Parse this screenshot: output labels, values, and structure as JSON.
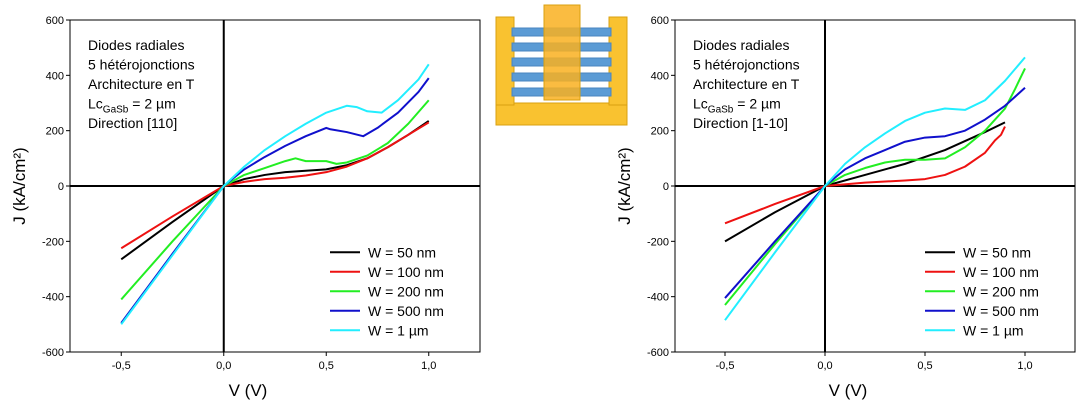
{
  "chart_data": [
    {
      "type": "line",
      "xlabel": "V (V)",
      "ylabel": "J (kA/cm²)",
      "annotation": [
        "Diodes radiales",
        "5 hétérojonctions",
        "Architecture en T",
        {
          "text": "Lc",
          "subscript": "GaSb",
          "suffix": " = 2 µm"
        },
        "Direction [110]"
      ],
      "xlim": [
        -0.75,
        1.25
      ],
      "ylim": [
        -600,
        600
      ],
      "xticks": [
        {
          "value": -0.5,
          "label": "-0,5"
        },
        {
          "value": 0,
          "label": "0,0"
        },
        {
          "value": 0.5,
          "label": "0,5"
        },
        {
          "value": 1,
          "label": "1,0"
        }
      ],
      "yticks": [
        -600,
        -400,
        -200,
        0,
        200,
        400,
        600
      ],
      "legend": "lower right",
      "series": [
        {
          "name": "W = 50 nm",
          "color": "#000000",
          "x": [
            -0.5,
            -0.25,
            0,
            0.1,
            0.2,
            0.3,
            0.5,
            0.6,
            0.7,
            0.8,
            0.9,
            1.0
          ],
          "values": [
            -265,
            -130,
            0,
            25,
            40,
            50,
            60,
            75,
            100,
            140,
            185,
            235
          ]
        },
        {
          "name": "W = 100 nm",
          "color": "#ee1111",
          "x": [
            -0.5,
            -0.25,
            0,
            0.1,
            0.2,
            0.3,
            0.4,
            0.5,
            0.6,
            0.7,
            0.8,
            0.9,
            1.0
          ],
          "values": [
            -225,
            -110,
            0,
            15,
            25,
            30,
            38,
            50,
            70,
            100,
            140,
            185,
            230
          ]
        },
        {
          "name": "W = 200 nm",
          "color": "#22ee22",
          "x": [
            -0.5,
            -0.25,
            0,
            0.1,
            0.2,
            0.3,
            0.35,
            0.4,
            0.5,
            0.55,
            0.6,
            0.7,
            0.8,
            0.9,
            1.0
          ],
          "values": [
            -410,
            -200,
            0,
            40,
            65,
            90,
            100,
            90,
            90,
            80,
            85,
            110,
            155,
            225,
            310
          ]
        },
        {
          "name": "W = 500 nm",
          "color": "#1010cc",
          "x": [
            -0.5,
            -0.25,
            0,
            0.1,
            0.2,
            0.3,
            0.4,
            0.5,
            0.52,
            0.6,
            0.68,
            0.75,
            0.85,
            0.95,
            1.0
          ],
          "values": [
            -495,
            -245,
            0,
            60,
            105,
            145,
            180,
            210,
            205,
            195,
            180,
            210,
            265,
            340,
            390
          ]
        },
        {
          "name": "W = 1 µm",
          "color": "#22eeff",
          "x": [
            -0.5,
            -0.25,
            0,
            0.1,
            0.2,
            0.3,
            0.4,
            0.5,
            0.6,
            0.65,
            0.7,
            0.77,
            0.85,
            0.95,
            1.0
          ],
          "values": [
            -500,
            -250,
            0,
            70,
            130,
            180,
            225,
            265,
            290,
            285,
            270,
            265,
            310,
            385,
            440
          ]
        }
      ]
    },
    {
      "type": "line",
      "xlabel": "V (V)",
      "ylabel": "J (kA/cm²)",
      "annotation": [
        "Diodes radiales",
        "5 hétérojonctions",
        "Architecture en T",
        {
          "text": "Lc",
          "subscript": "GaSb",
          "suffix": " = 2 µm"
        },
        "Direction [1-10]"
      ],
      "xlim": [
        -0.75,
        1.25
      ],
      "ylim": [
        -600,
        600
      ],
      "xticks": [
        {
          "value": -0.5,
          "label": "-0,5"
        },
        {
          "value": 0,
          "label": "0,0"
        },
        {
          "value": 0.5,
          "label": "0,5"
        },
        {
          "value": 1,
          "label": "1,0"
        }
      ],
      "yticks": [
        -600,
        -400,
        -200,
        0,
        200,
        400,
        600
      ],
      "legend": "lower right",
      "series": [
        {
          "name": "W = 50 nm",
          "color": "#000000",
          "x": [
            -0.5,
            -0.25,
            0,
            0.2,
            0.4,
            0.6,
            0.8,
            0.9
          ],
          "values": [
            -200,
            -95,
            0,
            40,
            80,
            130,
            195,
            230
          ]
        },
        {
          "name": "W = 100 nm",
          "color": "#ee1111",
          "x": [
            -0.5,
            -0.25,
            0,
            0.2,
            0.4,
            0.5,
            0.6,
            0.7,
            0.8,
            0.85,
            0.88,
            0.9
          ],
          "values": [
            -135,
            -65,
            0,
            12,
            20,
            25,
            40,
            70,
            120,
            165,
            185,
            215
          ]
        },
        {
          "name": "W = 200 nm",
          "color": "#22ee22",
          "x": [
            -0.5,
            -0.25,
            0,
            0.1,
            0.2,
            0.3,
            0.4,
            0.5,
            0.6,
            0.7,
            0.8,
            0.9,
            0.95,
            1.0
          ],
          "values": [
            -430,
            -210,
            0,
            40,
            65,
            85,
            95,
            95,
            100,
            140,
            200,
            280,
            350,
            425
          ]
        },
        {
          "name": "W = 500 nm",
          "color": "#1010cc",
          "x": [
            -0.5,
            -0.25,
            0,
            0.1,
            0.2,
            0.3,
            0.4,
            0.5,
            0.6,
            0.7,
            0.8,
            0.9,
            1.0
          ],
          "values": [
            -405,
            -200,
            0,
            60,
            100,
            130,
            160,
            175,
            180,
            200,
            240,
            290,
            355
          ]
        },
        {
          "name": "W = 1 µm",
          "color": "#22eeff",
          "x": [
            -0.5,
            -0.25,
            0,
            0.1,
            0.2,
            0.3,
            0.4,
            0.5,
            0.6,
            0.7,
            0.8,
            0.9,
            1.0
          ],
          "values": [
            -485,
            -240,
            0,
            80,
            140,
            190,
            235,
            265,
            280,
            275,
            310,
            380,
            465
          ]
        }
      ]
    }
  ]
}
